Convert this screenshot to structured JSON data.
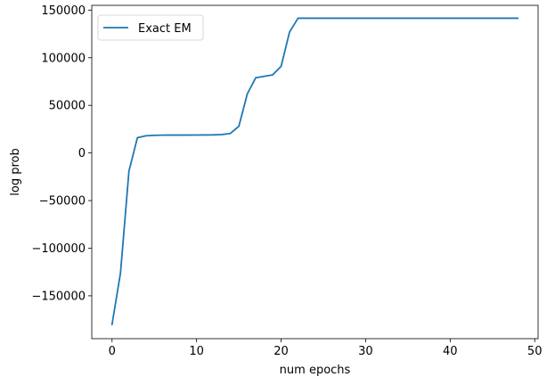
{
  "chart_data": {
    "type": "line",
    "title": "",
    "xlabel": "num epochs",
    "ylabel": "log prob",
    "xlim": [
      -2.4,
      50.4
    ],
    "ylim": [
      -195000,
      155000
    ],
    "xticks": [
      0,
      10,
      20,
      30,
      40,
      50
    ],
    "xtick_labels": [
      "0",
      "10",
      "20",
      "30",
      "40",
      "50"
    ],
    "yticks": [
      -150000,
      -100000,
      -50000,
      0,
      50000,
      100000,
      150000
    ],
    "ytick_labels": [
      "−150000",
      "−100000",
      "−50000",
      "0",
      "50000",
      "100000",
      "150000"
    ],
    "grid": false,
    "legend": {
      "position": "upper-left"
    },
    "series": [
      {
        "name": "Exact EM",
        "color": "#1f77b4",
        "x": [
          0,
          1,
          2,
          3,
          4,
          5,
          6,
          7,
          8,
          9,
          10,
          11,
          12,
          13,
          14,
          15,
          16,
          17,
          18,
          19,
          20,
          21,
          22,
          23,
          24,
          25,
          26,
          27,
          28,
          29,
          30,
          31,
          32,
          33,
          34,
          35,
          36,
          37,
          38,
          39,
          40,
          41,
          42,
          43,
          44,
          45,
          46,
          47,
          48
        ],
        "y": [
          -180000,
          -126000,
          -19000,
          16000,
          18000,
          18500,
          18700,
          18800,
          18800,
          18800,
          18850,
          18900,
          19000,
          19300,
          20500,
          28000,
          62000,
          79000,
          80500,
          82000,
          91000,
          127000,
          141500,
          141500,
          141500,
          141500,
          141500,
          141500,
          141500,
          141500,
          141500,
          141500,
          141500,
          141500,
          141500,
          141500,
          141500,
          141500,
          141500,
          141500,
          141500,
          141500,
          141500,
          141500,
          141500,
          141500,
          141500,
          141500,
          141500
        ]
      }
    ]
  }
}
